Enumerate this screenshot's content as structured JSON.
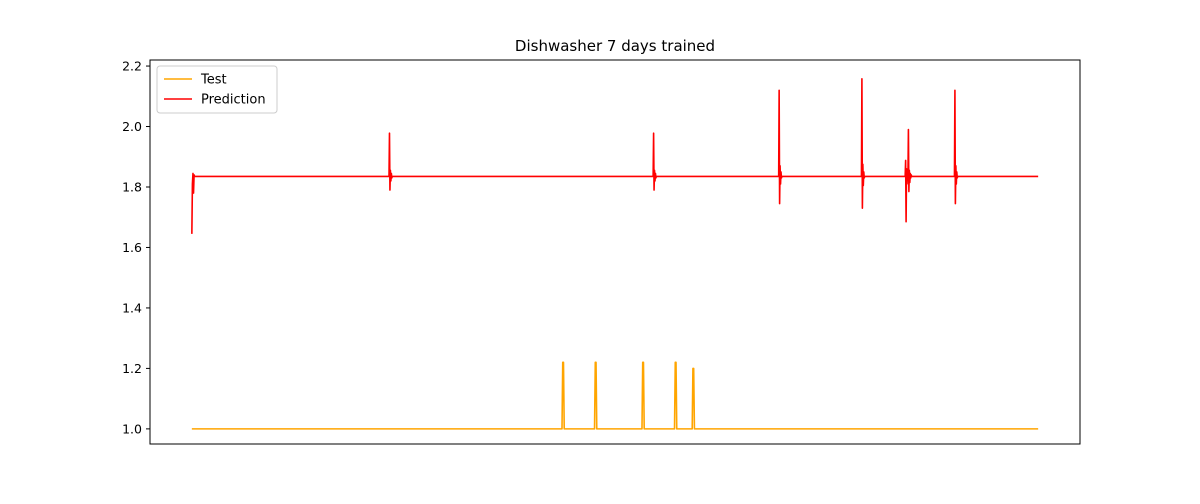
{
  "chart_data": {
    "type": "line",
    "title": "Dishwasher 7 days trained",
    "xlabel": "",
    "ylabel": "",
    "xlim": [
      0,
      1000
    ],
    "ylim": [
      0.95,
      2.22
    ],
    "x_ticks_shown": false,
    "y_ticks": [
      1.0,
      1.2,
      1.4,
      1.6,
      1.8,
      2.0,
      2.2
    ],
    "y_tick_labels": [
      "1.0",
      "1.2",
      "1.4",
      "1.6",
      "1.8",
      "2.0",
      "2.2"
    ],
    "grid": false,
    "legend_position": "top-left",
    "series": [
      {
        "name": "Test",
        "color": "#ffa500",
        "x": [
          45,
          443,
          443.8,
          444.6,
          445.4,
          478,
          478.8,
          479.6,
          480.4,
          529,
          529.8,
          530.6,
          531.4,
          564,
          564.8,
          565.6,
          566.4,
          583,
          583.8,
          584.6,
          585.4,
          955
        ],
        "y": [
          1.0,
          1.0,
          1.22,
          1.22,
          1.0,
          1.0,
          1.22,
          1.22,
          1.0,
          1.0,
          1.22,
          1.22,
          1.0,
          1.0,
          1.22,
          1.22,
          1.0,
          1.0,
          1.2,
          1.2,
          1.0,
          1.0
        ]
      },
      {
        "name": "Prediction",
        "color": "#ff0000",
        "x": [
          45,
          45.6,
          46.2,
          46.8,
          47.4,
          48,
          257,
          257.5,
          258,
          258.5,
          259,
          259.5,
          260,
          260.5,
          541,
          541.5,
          542,
          542.5,
          543,
          543.5,
          544,
          544.5,
          676,
          676.5,
          677,
          677.5,
          678,
          678.5,
          679,
          679.5,
          765,
          765.5,
          766,
          766.5,
          767,
          767.5,
          768,
          768.5,
          812,
          812.5,
          813,
          813.5,
          814,
          814.5,
          815,
          815.5,
          816,
          816.5,
          817,
          817.5,
          818,
          818.5,
          819,
          819.5,
          865,
          865.5,
          866,
          866.5,
          867,
          867.5,
          868,
          868.5,
          955
        ],
        "y": [
          1.645,
          1.81,
          1.845,
          1.78,
          1.84,
          1.835,
          1.835,
          1.978,
          1.79,
          1.855,
          1.82,
          1.845,
          1.83,
          1.835,
          1.835,
          1.978,
          1.79,
          1.855,
          1.82,
          1.845,
          1.83,
          1.835,
          1.835,
          2.12,
          1.745,
          1.87,
          1.81,
          1.85,
          1.83,
          1.835,
          1.835,
          2.158,
          1.73,
          1.875,
          1.805,
          1.85,
          1.83,
          1.835,
          1.835,
          1.888,
          1.685,
          1.86,
          1.81,
          1.84,
          1.835,
          1.99,
          1.785,
          1.855,
          1.815,
          1.845,
          1.83,
          1.84,
          1.835,
          1.835,
          1.835,
          2.12,
          1.745,
          1.87,
          1.81,
          1.85,
          1.83,
          1.835,
          1.835
        ]
      }
    ]
  }
}
